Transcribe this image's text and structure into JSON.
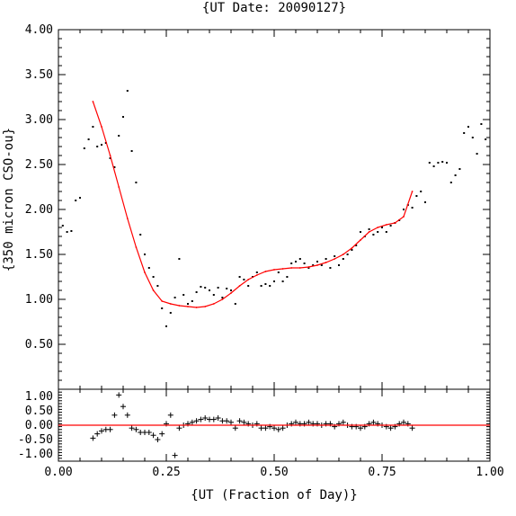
{
  "chart_data": [
    {
      "type": "scatter",
      "title": "{UT Date: 20090127}",
      "ylabel": "{350 micron CSO-ou}",
      "xlim": [
        0,
        1
      ],
      "ylim": [
        0,
        4
      ],
      "x_ticks": [
        "0.00",
        "0.25",
        "0.50",
        "0.75",
        "1.00"
      ],
      "y_ticks": [
        "0.50",
        "1.00",
        "1.50",
        "2.00",
        "2.50",
        "3.00",
        "3.50",
        "4.00"
      ],
      "y_tick_values": [
        0.5,
        1.0,
        1.5,
        2.0,
        2.5,
        3.0,
        3.5,
        4.0
      ],
      "series": [
        {
          "marker": "dot",
          "color": "#000000",
          "x": [
            0.01,
            0.02,
            0.03,
            0.04,
            0.05,
            0.06,
            0.07,
            0.08,
            0.09,
            0.1,
            0.11,
            0.12,
            0.13,
            0.14,
            0.15,
            0.16,
            0.17,
            0.18,
            0.19,
            0.2,
            0.21,
            0.22,
            0.23,
            0.24,
            0.25,
            0.26,
            0.27,
            0.28,
            0.29,
            0.3,
            0.31,
            0.32,
            0.33,
            0.34,
            0.35,
            0.36,
            0.37,
            0.38,
            0.39,
            0.4,
            0.41,
            0.42,
            0.43,
            0.44,
            0.45,
            0.46,
            0.47,
            0.48,
            0.49,
            0.5,
            0.51,
            0.52,
            0.53,
            0.54,
            0.55,
            0.56,
            0.57,
            0.58,
            0.59,
            0.6,
            0.61,
            0.62,
            0.63,
            0.64,
            0.65,
            0.66,
            0.67,
            0.68,
            0.69,
            0.7,
            0.71,
            0.72,
            0.73,
            0.74,
            0.75,
            0.76,
            0.77,
            0.78,
            0.79,
            0.8,
            0.81,
            0.82,
            0.83,
            0.84,
            0.85,
            0.86,
            0.87,
            0.88,
            0.89,
            0.9,
            0.91,
            0.92,
            0.93,
            0.94,
            0.95,
            0.96,
            0.97,
            0.98,
            0.99
          ],
          "y": [
            1.82,
            1.75,
            1.76,
            2.1,
            2.13,
            2.68,
            2.78,
            2.92,
            2.7,
            2.72,
            2.74,
            2.57,
            2.47,
            2.82,
            3.03,
            3.32,
            2.65,
            2.3,
            1.72,
            1.5,
            1.35,
            1.25,
            1.15,
            0.9,
            0.7,
            0.85,
            1.02,
            1.45,
            1.05,
            0.95,
            0.98,
            1.08,
            1.14,
            1.13,
            1.1,
            1.05,
            1.13,
            1.02,
            1.12,
            1.1,
            0.95,
            1.25,
            1.22,
            1.15,
            1.25,
            1.3,
            1.15,
            1.17,
            1.15,
            1.2,
            1.3,
            1.2,
            1.25,
            1.4,
            1.42,
            1.45,
            1.4,
            1.35,
            1.38,
            1.42,
            1.38,
            1.45,
            1.35,
            1.48,
            1.38,
            1.45,
            1.5,
            1.55,
            1.6,
            1.75,
            1.7,
            1.78,
            1.72,
            1.75,
            1.8,
            1.75,
            1.82,
            1.85,
            1.88,
            2.0,
            2.05,
            2.02,
            2.15,
            2.2,
            2.08,
            2.52,
            2.48,
            2.52,
            2.53,
            2.52,
            2.3,
            2.38,
            2.45,
            2.85,
            2.92,
            2.8,
            2.62,
            2.95,
            2.78
          ]
        },
        {
          "marker": "line",
          "color": "#ff0000",
          "x": [
            0.08,
            0.1,
            0.12,
            0.14,
            0.16,
            0.18,
            0.2,
            0.22,
            0.24,
            0.26,
            0.28,
            0.3,
            0.32,
            0.34,
            0.36,
            0.38,
            0.4,
            0.42,
            0.44,
            0.46,
            0.48,
            0.5,
            0.52,
            0.54,
            0.56,
            0.58,
            0.6,
            0.62,
            0.64,
            0.66,
            0.68,
            0.7,
            0.72,
            0.74,
            0.76,
            0.78,
            0.8,
            0.82
          ],
          "y": [
            3.2,
            2.92,
            2.6,
            2.25,
            1.9,
            1.58,
            1.3,
            1.1,
            0.98,
            0.95,
            0.93,
            0.92,
            0.91,
            0.92,
            0.95,
            1.0,
            1.07,
            1.15,
            1.22,
            1.27,
            1.31,
            1.33,
            1.34,
            1.35,
            1.35,
            1.36,
            1.38,
            1.41,
            1.45,
            1.5,
            1.57,
            1.66,
            1.75,
            1.8,
            1.83,
            1.85,
            1.92,
            2.2
          ]
        }
      ]
    },
    {
      "type": "scatter",
      "xlabel": "{UT (Fraction of Day)}",
      "xlim": [
        0,
        1
      ],
      "ylim": [
        -1.25,
        1.25
      ],
      "x_ticks": [
        "0.00",
        "0.25",
        "0.50",
        "0.75",
        "1.00"
      ],
      "y_ticks": [
        "1.00",
        "0.50",
        "0.00",
        "-0.50",
        "-1.00"
      ],
      "y_tick_values": [
        1.0,
        0.5,
        0.0,
        -0.5,
        -1.0
      ],
      "series": [
        {
          "marker": "plus",
          "color": "#000000",
          "x": [
            0.08,
            0.09,
            0.1,
            0.11,
            0.12,
            0.13,
            0.14,
            0.15,
            0.16,
            0.17,
            0.18,
            0.19,
            0.2,
            0.21,
            0.22,
            0.23,
            0.24,
            0.25,
            0.26,
            0.27,
            0.28,
            0.29,
            0.3,
            0.31,
            0.32,
            0.33,
            0.34,
            0.35,
            0.36,
            0.37,
            0.38,
            0.39,
            0.4,
            0.41,
            0.42,
            0.43,
            0.44,
            0.45,
            0.46,
            0.47,
            0.48,
            0.49,
            0.5,
            0.51,
            0.52,
            0.53,
            0.54,
            0.55,
            0.56,
            0.57,
            0.58,
            0.59,
            0.6,
            0.61,
            0.62,
            0.63,
            0.64,
            0.65,
            0.66,
            0.67,
            0.68,
            0.69,
            0.7,
            0.71,
            0.72,
            0.73,
            0.74,
            0.75,
            0.76,
            0.77,
            0.78,
            0.79,
            0.8,
            0.81,
            0.82
          ],
          "y": [
            -0.45,
            -0.3,
            -0.2,
            -0.15,
            -0.15,
            0.35,
            1.05,
            0.65,
            0.35,
            -0.1,
            -0.15,
            -0.25,
            -0.25,
            -0.25,
            -0.35,
            -0.5,
            -0.3,
            0.05,
            0.35,
            -1.05,
            -0.1,
            0.0,
            0.05,
            0.1,
            0.15,
            0.2,
            0.25,
            0.2,
            0.2,
            0.25,
            0.15,
            0.15,
            0.1,
            -0.1,
            0.15,
            0.1,
            0.05,
            0.0,
            0.05,
            -0.1,
            -0.1,
            -0.05,
            -0.1,
            -0.15,
            -0.1,
            0.0,
            0.05,
            0.1,
            0.05,
            0.05,
            0.1,
            0.05,
            0.05,
            0.0,
            0.05,
            0.05,
            -0.05,
            0.05,
            0.1,
            0.0,
            -0.05,
            -0.05,
            -0.1,
            -0.05,
            0.05,
            0.1,
            0.05,
            0.0,
            -0.05,
            -0.1,
            -0.05,
            0.05,
            0.1,
            0.05,
            -0.1
          ]
        },
        {
          "marker": "line",
          "color": "#ff0000",
          "x": [
            0,
            1
          ],
          "y": [
            0,
            0
          ]
        }
      ]
    }
  ]
}
